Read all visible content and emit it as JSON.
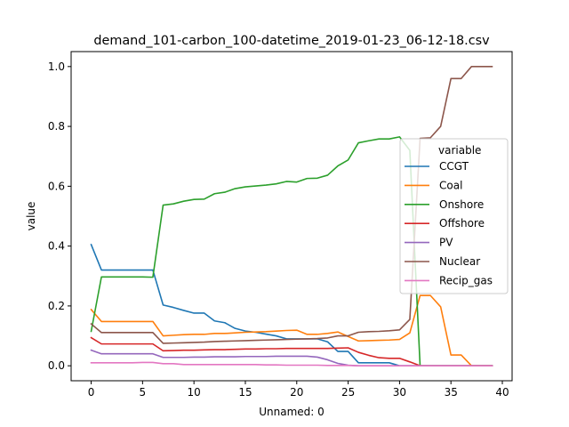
{
  "chart_data": {
    "type": "line",
    "title": "demand_101-carbon_100-datetime_2019-01-23_06-12-18.csv",
    "xlabel": "Unnamed: 0",
    "ylabel": "value",
    "xlim": [
      -1.95,
      40.95
    ],
    "ylim": [
      -0.05,
      1.05
    ],
    "xticks": [
      0,
      5,
      10,
      15,
      20,
      25,
      30,
      35,
      40
    ],
    "yticks": [
      0.0,
      0.2,
      0.4,
      0.6,
      0.8,
      1.0
    ],
    "xtick_labels": [
      "0",
      "5",
      "10",
      "15",
      "20",
      "25",
      "30",
      "35",
      "40"
    ],
    "ytick_labels": [
      "0.0",
      "0.2",
      "0.4",
      "0.6",
      "0.8",
      "1.0"
    ],
    "grid": false,
    "legend_title": "variable",
    "legend_position": "center-right",
    "x": [
      0,
      1,
      2,
      3,
      4,
      5,
      6,
      7,
      8,
      9,
      10,
      11,
      12,
      13,
      14,
      15,
      16,
      17,
      18,
      19,
      20,
      21,
      22,
      23,
      24,
      25,
      26,
      27,
      28,
      29,
      30,
      31,
      32,
      33,
      34,
      35,
      36,
      37,
      38,
      39
    ],
    "series": [
      {
        "name": "CCGT",
        "color": "#1f77b4",
        "values": [
          0.405,
          0.32,
          0.32,
          0.32,
          0.32,
          0.32,
          0.32,
          0.203,
          0.195,
          0.185,
          0.176,
          0.176,
          0.15,
          0.144,
          0.125,
          0.116,
          0.112,
          0.106,
          0.1,
          0.09,
          0.09,
          0.09,
          0.09,
          0.08,
          0.048,
          0.048,
          0.01,
          0.01,
          0.01,
          0.01,
          0.0,
          0.0,
          0.0,
          0.0,
          0.0,
          0.0,
          0.0,
          0.0,
          0.0,
          0.0
        ]
      },
      {
        "name": "Coal",
        "color": "#ff7f0e",
        "values": [
          0.188,
          0.148,
          0.148,
          0.148,
          0.148,
          0.148,
          0.148,
          0.1,
          0.102,
          0.104,
          0.105,
          0.105,
          0.108,
          0.108,
          0.11,
          0.112,
          0.113,
          0.114,
          0.116,
          0.118,
          0.119,
          0.105,
          0.105,
          0.108,
          0.113,
          0.098,
          0.083,
          0.084,
          0.085,
          0.086,
          0.088,
          0.11,
          0.235,
          0.235,
          0.197,
          0.036,
          0.036,
          0.0,
          0.0,
          0.0
        ]
      },
      {
        "name": "Onshore",
        "color": "#2ca02c",
        "values": [
          0.115,
          0.297,
          0.297,
          0.297,
          0.297,
          0.297,
          0.296,
          0.537,
          0.541,
          0.55,
          0.556,
          0.557,
          0.575,
          0.58,
          0.592,
          0.598,
          0.601,
          0.604,
          0.608,
          0.616,
          0.614,
          0.626,
          0.627,
          0.637,
          0.668,
          0.688,
          0.745,
          0.752,
          0.758,
          0.758,
          0.765,
          0.72,
          0.0,
          0.0,
          0.0,
          0.0,
          0.0,
          0.0,
          0.0,
          0.0
        ]
      },
      {
        "name": "Offshore",
        "color": "#d62728",
        "values": [
          0.094,
          0.073,
          0.073,
          0.073,
          0.073,
          0.073,
          0.073,
          0.05,
          0.051,
          0.052,
          0.052,
          0.053,
          0.054,
          0.054,
          0.055,
          0.056,
          0.056,
          0.057,
          0.057,
          0.058,
          0.058,
          0.058,
          0.058,
          0.058,
          0.059,
          0.06,
          0.045,
          0.035,
          0.027,
          0.025,
          0.025,
          0.013,
          0.0,
          0.0,
          0.0,
          0.0,
          0.0,
          0.0,
          0.0,
          0.0
        ]
      },
      {
        "name": "PV",
        "color": "#9467bd",
        "values": [
          0.052,
          0.04,
          0.04,
          0.04,
          0.04,
          0.04,
          0.04,
          0.028,
          0.028,
          0.028,
          0.029,
          0.029,
          0.03,
          0.03,
          0.03,
          0.031,
          0.031,
          0.031,
          0.032,
          0.032,
          0.032,
          0.032,
          0.029,
          0.02,
          0.008,
          0.002,
          0.0,
          0.0,
          0.0,
          0.0,
          0.0,
          0.0,
          0.0,
          0.0,
          0.0,
          0.0,
          0.0,
          0.0,
          0.0,
          0.0
        ]
      },
      {
        "name": "Nuclear",
        "color": "#8c564b",
        "values": [
          0.14,
          0.111,
          0.111,
          0.111,
          0.111,
          0.111,
          0.111,
          0.075,
          0.076,
          0.077,
          0.078,
          0.079,
          0.081,
          0.082,
          0.083,
          0.084,
          0.085,
          0.086,
          0.087,
          0.088,
          0.089,
          0.09,
          0.091,
          0.093,
          0.1,
          0.1,
          0.112,
          0.114,
          0.115,
          0.117,
          0.12,
          0.155,
          0.76,
          0.762,
          0.8,
          0.96,
          0.96,
          1.0,
          1.0,
          1.0
        ]
      },
      {
        "name": "Recip_gas",
        "color": "#e377c2",
        "values": [
          0.01,
          0.01,
          0.01,
          0.01,
          0.01,
          0.011,
          0.011,
          0.007,
          0.007,
          0.004,
          0.004,
          0.004,
          0.004,
          0.004,
          0.004,
          0.004,
          0.004,
          0.003,
          0.003,
          0.002,
          0.002,
          0.002,
          0.002,
          0.001,
          0.001,
          0.001,
          0.0,
          0.0,
          0.0,
          0.0,
          0.0,
          0.0,
          0.0,
          0.0,
          0.0,
          0.0,
          0.0,
          0.0,
          0.0,
          0.0
        ]
      }
    ]
  }
}
